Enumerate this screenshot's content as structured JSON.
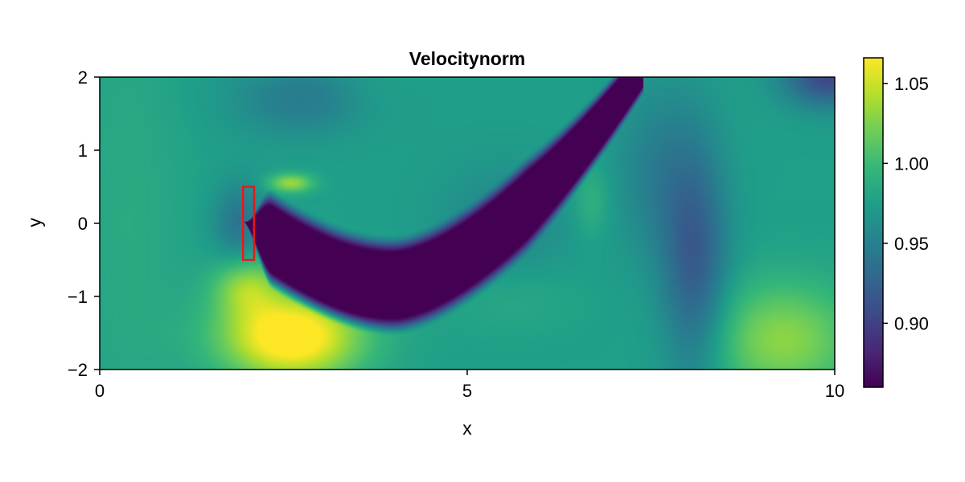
{
  "chart_data": {
    "type": "heatmap",
    "title": "Velocitynorm",
    "xlabel": "x",
    "ylabel": "y",
    "xlim": [
      0,
      10
    ],
    "ylim": [
      -2,
      2
    ],
    "xticks": [
      0,
      5,
      10
    ],
    "xtick_labels": [
      "0",
      "5",
      "10"
    ],
    "yticks": [
      -2,
      -1,
      0,
      1,
      2
    ],
    "ytick_labels": [
      "−2",
      "−1",
      "0",
      "1",
      "2"
    ],
    "colormap": "viridis",
    "color_range": [
      0.86,
      1.066
    ],
    "colorbar_ticks": [
      0.9,
      0.95,
      1.0,
      1.05
    ],
    "colorbar_tick_labels": [
      "0.90",
      "0.95",
      "1.00",
      "1.05"
    ],
    "obstacle": {
      "x_range": [
        1.95,
        2.1
      ],
      "y_range": [
        -0.5,
        0.5
      ],
      "color": "#e31a1c"
    },
    "grid": false
  }
}
